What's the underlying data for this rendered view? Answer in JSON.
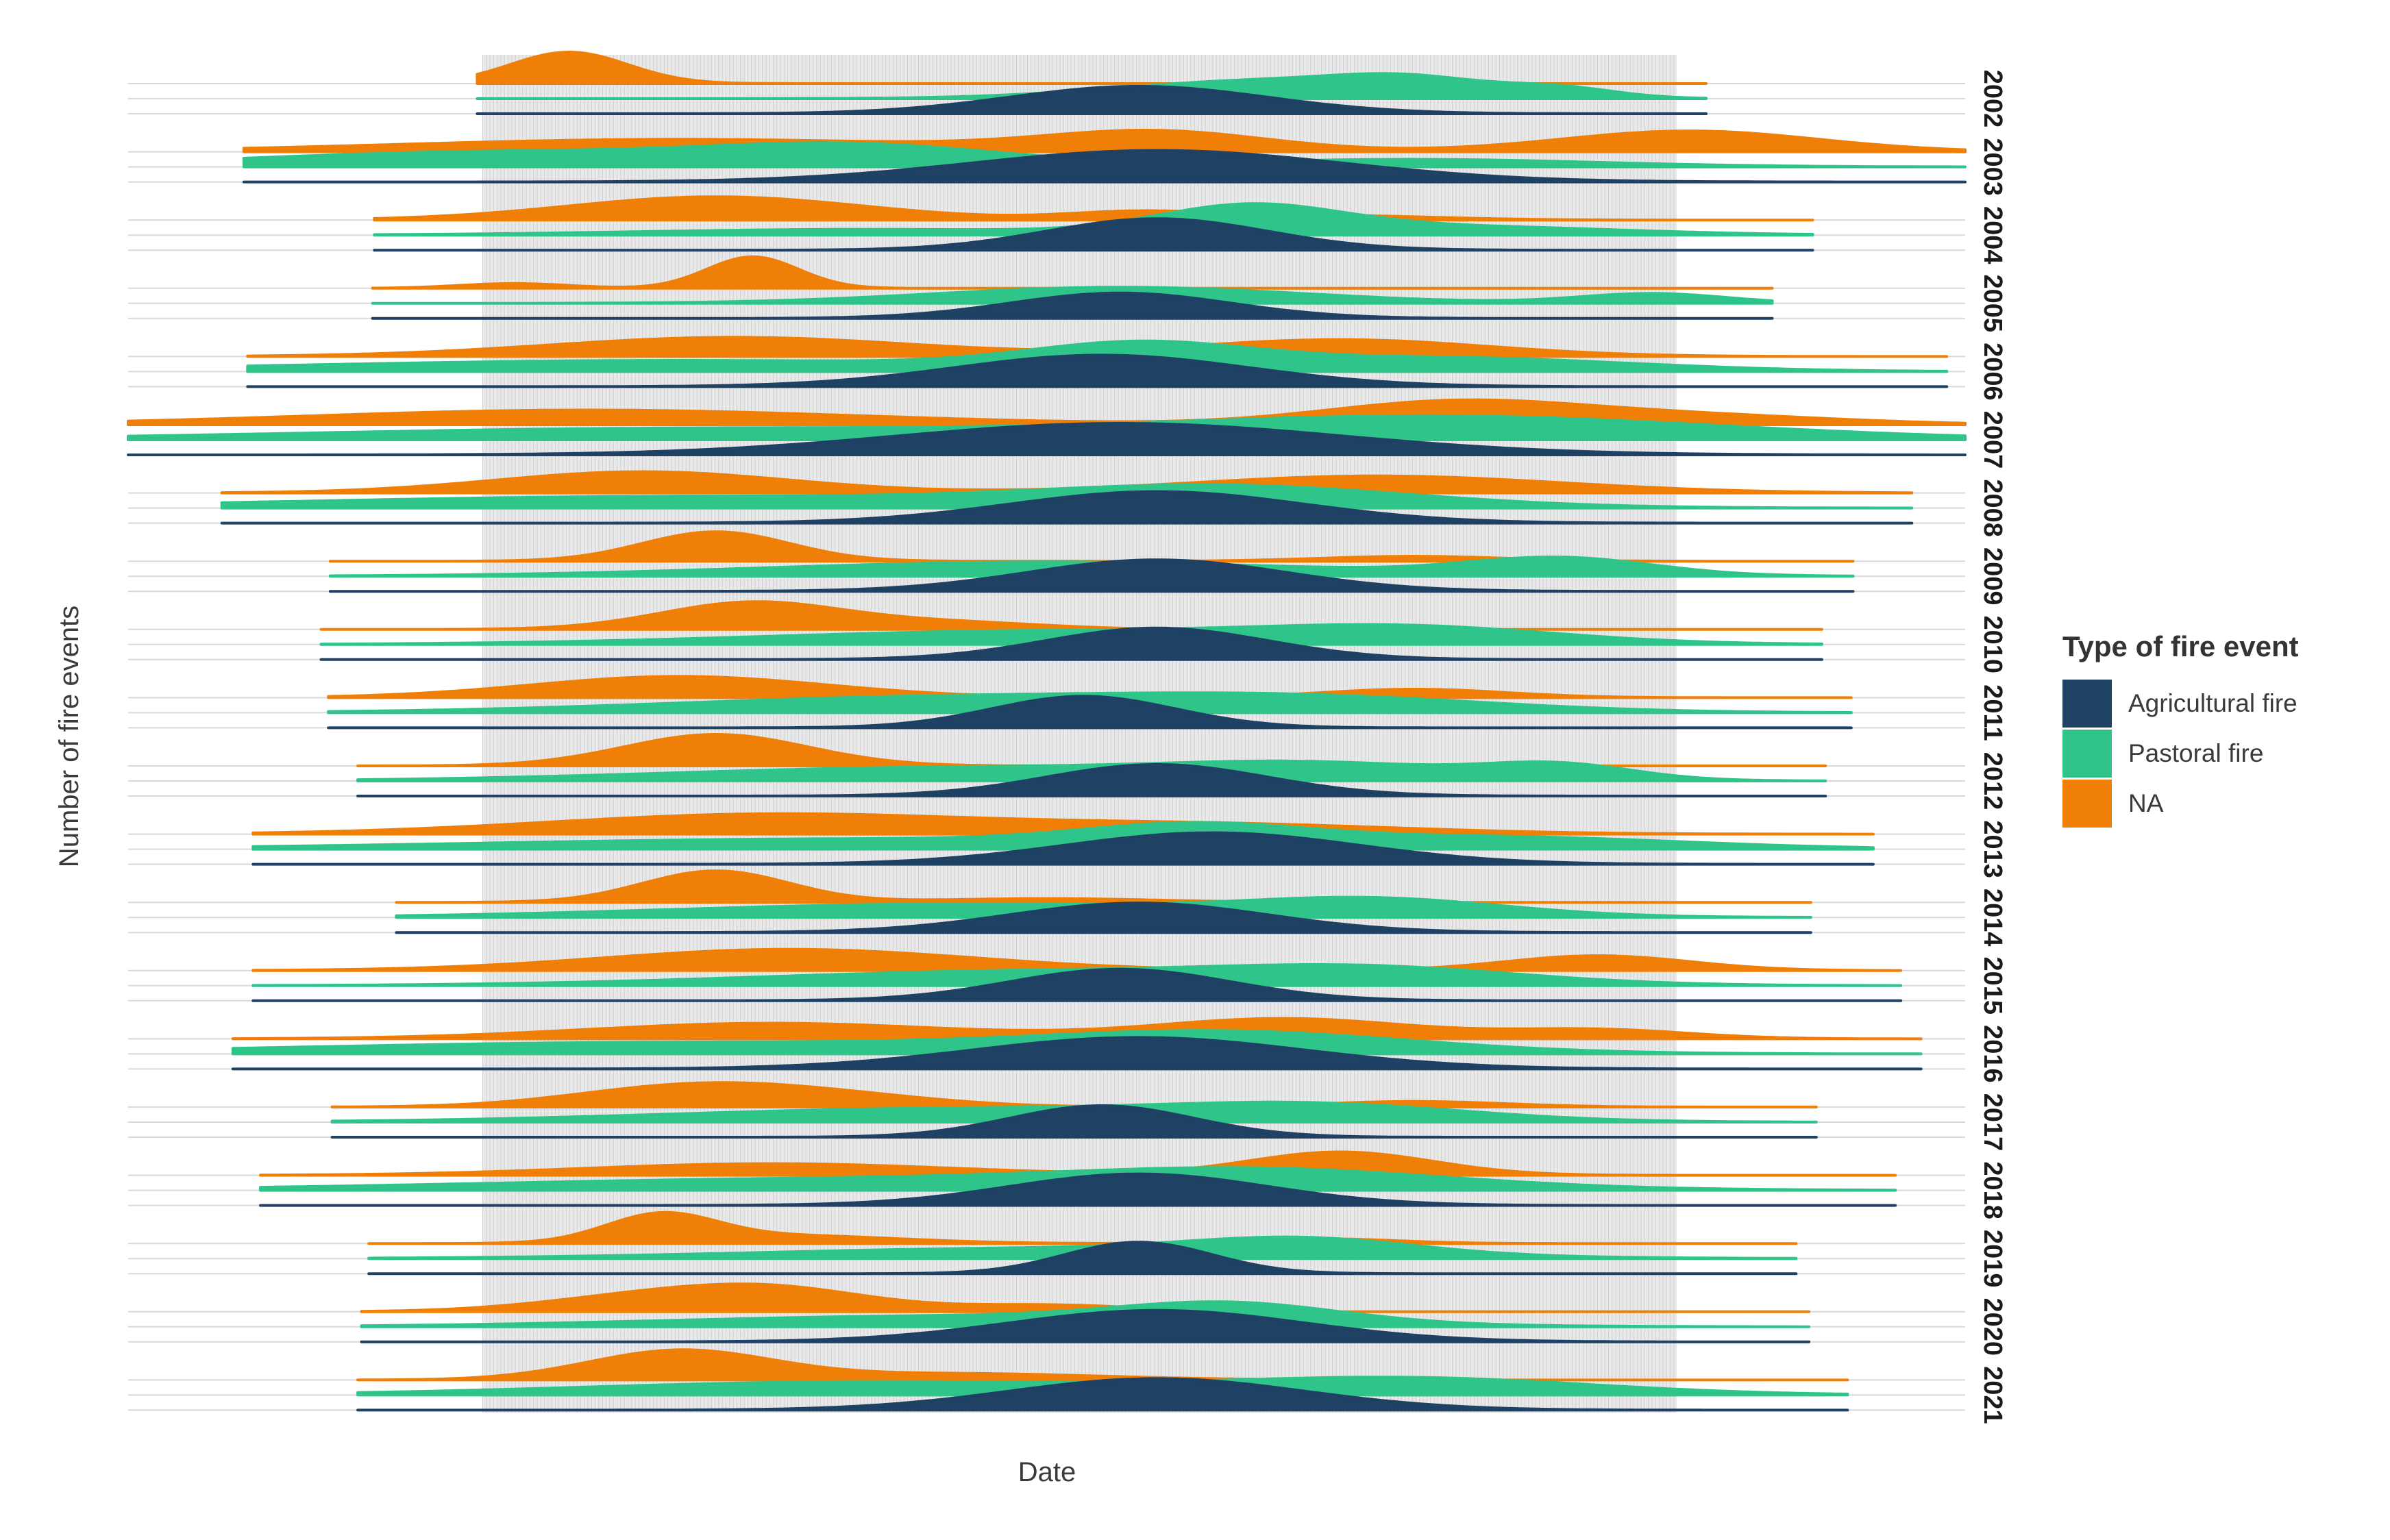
{
  "chart_data": {
    "type": "ridgeline",
    "title": "",
    "xlabel": "Date",
    "ylabel": "Number of fire events",
    "legend": {
      "title": "Type of fire event",
      "position": "right",
      "entries": [
        "Agricultural fire",
        "Pastoral fire",
        "NA"
      ]
    },
    "colors": {
      "Agricultural fire": "#1f4163",
      "Pastoral fire": "#2fc58a",
      "NA": "#f07f08"
    },
    "x_domain": [
      0,
      1
    ],
    "season_band": [
      0.193,
      0.843
    ],
    "years": [
      {
        "year": "2002",
        "range": [
          0.19,
          0.859
        ],
        "agri": [
          [
            0.55,
            0.07,
            0.8
          ]
        ],
        "past": [
          [
            0.62,
            0.08,
            0.5
          ],
          [
            0.7,
            0.04,
            0.35
          ],
          [
            0.78,
            0.03,
            0.25
          ]
        ],
        "na": [
          [
            0.24,
            0.032,
            1.0
          ]
        ]
      },
      {
        "year": "2003",
        "range": [
          0.063,
          1.0
        ],
        "agri": [
          [
            0.56,
            0.1,
            1.0
          ]
        ],
        "past": [
          [
            0.2,
            0.13,
            0.4
          ],
          [
            0.4,
            0.08,
            0.5
          ],
          [
            0.7,
            0.1,
            0.2
          ]
        ],
        "na": [
          [
            0.3,
            0.15,
            0.3
          ],
          [
            0.56,
            0.06,
            0.45
          ],
          [
            0.85,
            0.07,
            0.5
          ]
        ]
      },
      {
        "year": "2004",
        "range": [
          0.134,
          0.917
        ],
        "agri": [
          [
            0.56,
            0.06,
            1.0
          ]
        ],
        "past": [
          [
            0.4,
            0.12,
            0.2
          ],
          [
            0.61,
            0.05,
            0.9
          ],
          [
            0.72,
            0.09,
            0.3
          ]
        ],
        "na": [
          [
            0.32,
            0.08,
            0.6
          ],
          [
            0.55,
            0.04,
            0.2
          ],
          [
            0.65,
            0.06,
            0.12
          ]
        ]
      },
      {
        "year": "2005",
        "range": [
          0.133,
          0.895
        ],
        "agri": [
          [
            0.54,
            0.06,
            0.7
          ]
        ],
        "past": [
          [
            0.54,
            0.1,
            0.25
          ],
          [
            0.83,
            0.04,
            0.15
          ]
        ],
        "na": [
          [
            0.34,
            0.025,
            1.0
          ],
          [
            0.21,
            0.03,
            0.15
          ]
        ]
      },
      {
        "year": "2006",
        "range": [
          0.065,
          0.99
        ],
        "agri": [
          [
            0.53,
            0.08,
            1.0
          ]
        ],
        "past": [
          [
            0.3,
            0.2,
            0.35
          ],
          [
            0.55,
            0.06,
            0.7
          ],
          [
            0.72,
            0.1,
            0.4
          ]
        ],
        "na": [
          [
            0.33,
            0.1,
            0.4
          ],
          [
            0.66,
            0.08,
            0.35
          ]
        ]
      },
      {
        "year": "2007",
        "range": [
          0.0,
          1.0
        ],
        "agri": [
          [
            0.54,
            0.12,
            1.0
          ]
        ],
        "past": [
          [
            0.3,
            0.2,
            0.3
          ],
          [
            0.72,
            0.15,
            0.6
          ]
        ],
        "na": [
          [
            0.25,
            0.15,
            0.4
          ],
          [
            0.72,
            0.07,
            0.6
          ],
          [
            0.85,
            0.08,
            0.25
          ]
        ]
      },
      {
        "year": "2008",
        "range": [
          0.051,
          0.971
        ],
        "agri": [
          [
            0.56,
            0.08,
            1.0
          ]
        ],
        "past": [
          [
            0.3,
            0.2,
            0.3
          ],
          [
            0.6,
            0.1,
            0.5
          ]
        ],
        "na": [
          [
            0.28,
            0.08,
            0.5
          ],
          [
            0.68,
            0.1,
            0.4
          ]
        ]
      },
      {
        "year": "2009",
        "range": [
          0.11,
          0.939
        ],
        "agri": [
          [
            0.56,
            0.07,
            1.0
          ]
        ],
        "past": [
          [
            0.5,
            0.15,
            0.3
          ],
          [
            0.78,
            0.05,
            0.35
          ]
        ],
        "na": [
          [
            0.32,
            0.04,
            0.9
          ],
          [
            0.7,
            0.05,
            0.15
          ]
        ]
      },
      {
        "year": "2010",
        "range": [
          0.105,
          0.922
        ],
        "agri": [
          [
            0.56,
            0.06,
            1.0
          ]
        ],
        "past": [
          [
            0.5,
            0.15,
            0.3
          ],
          [
            0.7,
            0.08,
            0.3
          ]
        ],
        "na": [
          [
            0.34,
            0.05,
            0.8
          ],
          [
            0.45,
            0.05,
            0.2
          ]
        ]
      },
      {
        "year": "2011",
        "range": [
          0.109,
          0.938
        ],
        "agri": [
          [
            0.52,
            0.05,
            1.0
          ]
        ],
        "past": [
          [
            0.45,
            0.15,
            0.35
          ],
          [
            0.65,
            0.1,
            0.25
          ]
        ],
        "na": [
          [
            0.3,
            0.08,
            0.5
          ],
          [
            0.7,
            0.05,
            0.2
          ]
        ]
      },
      {
        "year": "2012",
        "range": [
          0.125,
          0.924
        ],
        "agri": [
          [
            0.56,
            0.06,
            1.0
          ]
        ],
        "past": [
          [
            0.45,
            0.15,
            0.3
          ],
          [
            0.65,
            0.08,
            0.3
          ],
          [
            0.78,
            0.04,
            0.3
          ]
        ],
        "na": [
          [
            0.32,
            0.05,
            1.0
          ]
        ]
      },
      {
        "year": "2013",
        "range": [
          0.068,
          0.95
        ],
        "agri": [
          [
            0.59,
            0.08,
            1.0
          ]
        ],
        "past": [
          [
            0.4,
            0.2,
            0.3
          ],
          [
            0.58,
            0.06,
            0.5
          ],
          [
            0.75,
            0.1,
            0.3
          ]
        ],
        "na": [
          [
            0.35,
            0.12,
            0.45
          ],
          [
            0.6,
            0.1,
            0.2
          ]
        ]
      },
      {
        "year": "2014",
        "range": [
          0.146,
          0.916
        ],
        "agri": [
          [
            0.55,
            0.07,
            0.9
          ]
        ],
        "past": [
          [
            0.45,
            0.15,
            0.3
          ],
          [
            0.68,
            0.07,
            0.35
          ]
        ],
        "na": [
          [
            0.32,
            0.04,
            1.0
          ],
          [
            0.5,
            0.06,
            0.12
          ]
        ]
      },
      {
        "year": "2015",
        "range": [
          0.068,
          0.965
        ],
        "agri": [
          [
            0.54,
            0.06,
            1.0
          ]
        ],
        "past": [
          [
            0.5,
            0.15,
            0.35
          ],
          [
            0.68,
            0.08,
            0.3
          ]
        ],
        "na": [
          [
            0.36,
            0.1,
            0.5
          ],
          [
            0.8,
            0.05,
            0.35
          ]
        ]
      },
      {
        "year": "2016",
        "range": [
          0.057,
          0.976
        ],
        "agri": [
          [
            0.55,
            0.09,
            1.0
          ]
        ],
        "past": [
          [
            0.3,
            0.2,
            0.3
          ],
          [
            0.6,
            0.1,
            0.5
          ]
        ],
        "na": [
          [
            0.35,
            0.1,
            0.35
          ],
          [
            0.63,
            0.07,
            0.45
          ],
          [
            0.8,
            0.05,
            0.2
          ]
        ]
      },
      {
        "year": "2017",
        "range": [
          0.111,
          0.919
        ],
        "agri": [
          [
            0.53,
            0.05,
            1.0
          ]
        ],
        "past": [
          [
            0.45,
            0.15,
            0.3
          ],
          [
            0.65,
            0.08,
            0.3
          ]
        ],
        "na": [
          [
            0.3,
            0.06,
            0.5
          ],
          [
            0.38,
            0.06,
            0.3
          ],
          [
            0.7,
            0.05,
            0.15
          ]
        ]
      },
      {
        "year": "2018",
        "range": [
          0.072,
          0.962
        ],
        "agri": [
          [
            0.55,
            0.07,
            1.0
          ]
        ],
        "past": [
          [
            0.4,
            0.2,
            0.3
          ],
          [
            0.62,
            0.1,
            0.4
          ]
        ],
        "na": [
          [
            0.35,
            0.1,
            0.3
          ],
          [
            0.66,
            0.05,
            0.6
          ]
        ]
      },
      {
        "year": "2019",
        "range": [
          0.131,
          0.908
        ],
        "agri": [
          [
            0.55,
            0.04,
            1.0
          ]
        ],
        "past": [
          [
            0.5,
            0.15,
            0.25
          ],
          [
            0.64,
            0.06,
            0.35
          ]
        ],
        "na": [
          [
            0.29,
            0.03,
            0.85
          ],
          [
            0.36,
            0.06,
            0.25
          ],
          [
            0.65,
            0.04,
            0.15
          ]
        ]
      },
      {
        "year": "2020",
        "range": [
          0.127,
          0.915
        ],
        "agri": [
          [
            0.56,
            0.08,
            1.0
          ]
        ],
        "past": [
          [
            0.45,
            0.15,
            0.3
          ],
          [
            0.6,
            0.06,
            0.5
          ]
        ],
        "na": [
          [
            0.29,
            0.06,
            0.5
          ],
          [
            0.36,
            0.05,
            0.5
          ],
          [
            0.5,
            0.05,
            0.2
          ]
        ]
      },
      {
        "year": "2021",
        "range": [
          0.125,
          0.936
        ],
        "agri": [
          [
            0.56,
            0.08,
            1.0
          ]
        ],
        "past": [
          [
            0.4,
            0.15,
            0.25
          ],
          [
            0.7,
            0.1,
            0.3
          ]
        ],
        "na": [
          [
            0.3,
            0.05,
            0.9
          ],
          [
            0.45,
            0.08,
            0.2
          ]
        ]
      }
    ]
  }
}
